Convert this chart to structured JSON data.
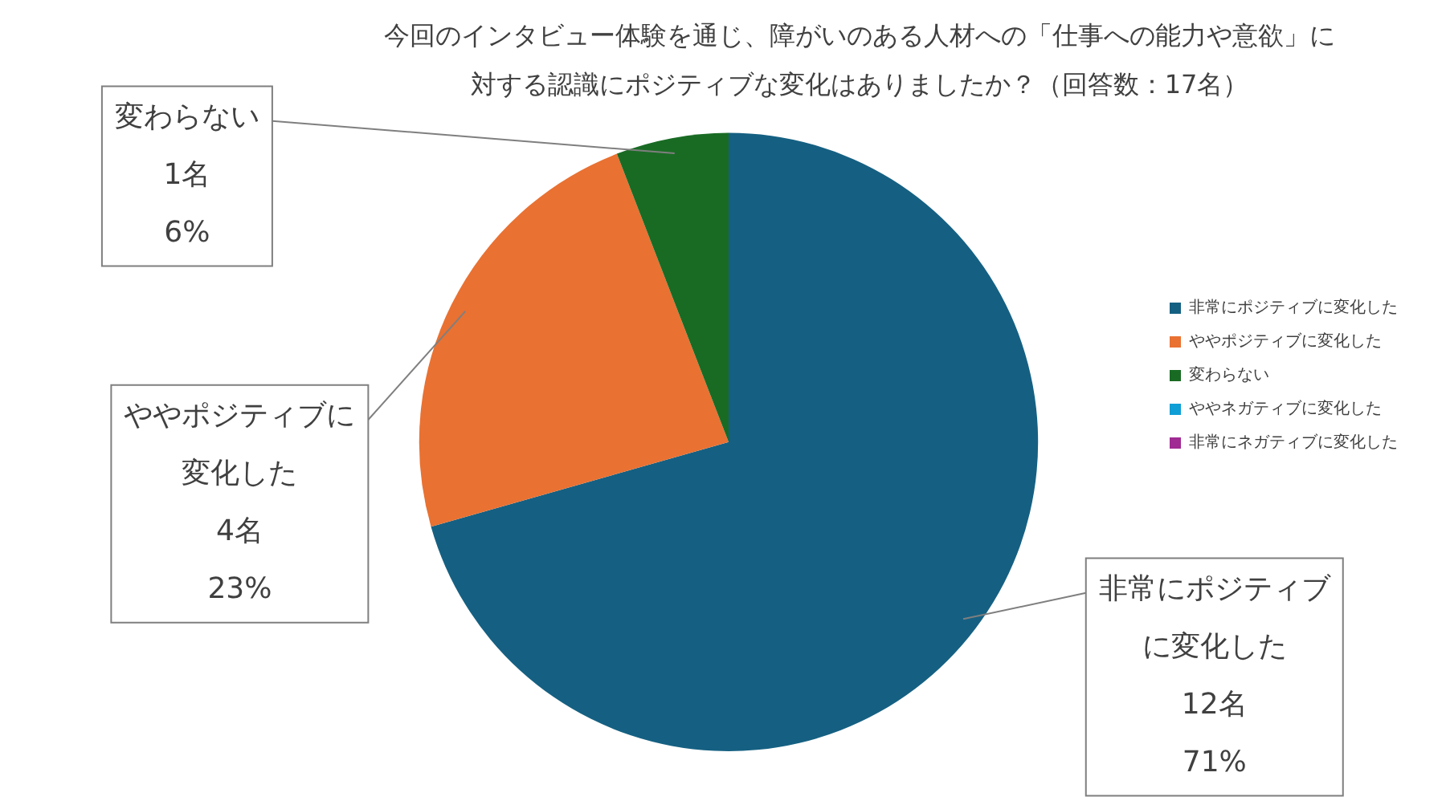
{
  "chart_data": {
    "type": "pie",
    "title": "今回のインタビュー体験を通じ、障がいのある人材への「仕事への能力や意欲」に対する認識にポジティブな変化はありましたか？（回答数：17名）",
    "categories": [
      "非常にポジティブに変化した",
      "ややポジティブに変化した",
      "変わらない",
      "ややネガティブに変化した",
      "非常にネガティブに変化した"
    ],
    "values": [
      12,
      4,
      1,
      0,
      0
    ],
    "value_labels": [
      "12名\n71%",
      "4名\n23%",
      "1名\n6%",
      null,
      null
    ],
    "colors": [
      "#156082",
      "#e97132",
      "#196b24",
      "#0f9ed5",
      "#a02b93"
    ],
    "legend": "right"
  }
}
